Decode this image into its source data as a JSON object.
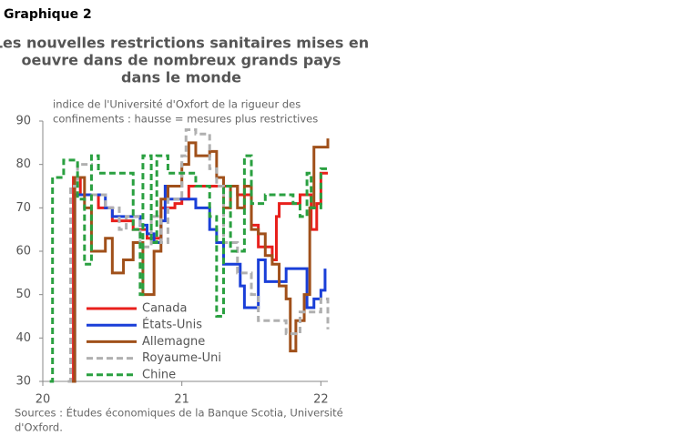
{
  "header": "Graphique 2",
  "chart_data": {
    "type": "line",
    "title": [
      "Les nouvelles restrictions sanitaires mises en",
      "oeuvre dans de nombreux grands pays",
      "dans le monde"
    ],
    "subtitle": [
      "indice de l'Université d'Oxfort de la rigueur des",
      "confinements : hausse = mesures plus restrictives"
    ],
    "xlim": [
      20,
      22.05
    ],
    "xticks": [
      20,
      21,
      22
    ],
    "ylim": [
      30,
      90
    ],
    "yticks": [
      30,
      40,
      50,
      60,
      70,
      80,
      90
    ],
    "step": true,
    "series": [
      {
        "name": "Canada",
        "color": "#e8201c",
        "dashed": false,
        "x": [
          20.2,
          20.22,
          20.27,
          20.4,
          20.5,
          20.65,
          20.75,
          20.85,
          20.95,
          21.0,
          21.05,
          21.3,
          21.4,
          21.5,
          21.55,
          21.65,
          21.68,
          21.7,
          21.85,
          21.9,
          21.93,
          21.97,
          22.0,
          22.05
        ],
        "values": [
          30,
          77,
          73,
          70,
          67,
          65,
          63,
          70,
          71,
          72,
          75,
          75,
          73,
          66,
          61,
          58,
          68,
          71,
          73,
          73,
          65,
          71,
          78,
          78
        ]
      },
      {
        "name": "États-Unis",
        "color": "#1a3fd8",
        "dashed": false,
        "x": [
          20.2,
          20.23,
          20.4,
          20.45,
          20.5,
          20.7,
          20.75,
          20.8,
          20.85,
          20.88,
          20.9,
          21.05,
          21.1,
          21.2,
          21.25,
          21.3,
          21.38,
          21.42,
          21.45,
          21.5,
          21.55,
          21.6,
          21.7,
          21.75,
          21.85,
          21.9,
          21.95,
          22.0,
          22.03
        ],
        "values": [
          30,
          73,
          73,
          70,
          68,
          66,
          64,
          62,
          67,
          75,
          72,
          72,
          70,
          65,
          62,
          57,
          57,
          52,
          47,
          47,
          58,
          53,
          53,
          56,
          56,
          47,
          49,
          51,
          56
        ]
      },
      {
        "name": "Allemagne",
        "color": "#a0501a",
        "dashed": false,
        "x": [
          20.2,
          20.23,
          20.3,
          20.35,
          20.45,
          20.5,
          20.58,
          20.65,
          20.72,
          20.8,
          20.85,
          20.9,
          21.0,
          21.05,
          21.1,
          21.2,
          21.25,
          21.3,
          21.35,
          21.4,
          21.45,
          21.5,
          21.55,
          21.6,
          21.65,
          21.7,
          21.75,
          21.78,
          21.82,
          21.88,
          21.92,
          21.95,
          22.05
        ],
        "values": [
          30,
          77,
          70,
          60,
          63,
          55,
          58,
          62,
          50,
          60,
          72,
          75,
          80,
          85,
          82,
          83,
          77,
          70,
          75,
          70,
          75,
          65,
          64,
          59,
          57,
          52,
          49,
          37,
          44,
          50,
          70,
          84,
          86
        ]
      },
      {
        "name": "Royaume-Uni",
        "color": "#b0b0b0",
        "dashed": true,
        "x": [
          20.18,
          20.2,
          20.25,
          20.35,
          20.45,
          20.55,
          20.6,
          20.7,
          20.78,
          20.85,
          20.9,
          21.0,
          21.03,
          21.1,
          21.2,
          21.25,
          21.3,
          21.4,
          21.5,
          21.55,
          21.7,
          21.75,
          21.85,
          21.95,
          22.0,
          22.05
        ],
        "values": [
          30,
          75,
          80,
          73,
          70,
          65,
          68,
          61,
          68,
          62,
          72,
          82,
          88,
          87,
          79,
          75,
          62,
          55,
          50,
          44,
          44,
          41,
          46,
          46,
          49,
          42
        ]
      },
      {
        "name": "Chine",
        "color": "#2aa040",
        "dashed": true,
        "x": [
          20.05,
          20.07,
          20.15,
          20.2,
          20.25,
          20.3,
          20.35,
          20.4,
          20.6,
          20.65,
          20.7,
          20.72,
          20.78,
          20.82,
          20.9,
          21.0,
          21.1,
          21.2,
          21.25,
          21.3,
          21.35,
          21.45,
          21.5,
          21.6,
          21.8,
          21.85,
          21.9,
          21.93,
          22.0,
          22.05
        ],
        "values": [
          30,
          77,
          81,
          81,
          72,
          57,
          82,
          78,
          78,
          65,
          50,
          82,
          62,
          82,
          78,
          78,
          75,
          68,
          45,
          75,
          60,
          82,
          71,
          73,
          71,
          68,
          78,
          70,
          79,
          79
        ]
      }
    ],
    "source": [
      "Sources : Études économiques de la Banque Scotia, Université",
      "d'Oxford."
    ]
  }
}
